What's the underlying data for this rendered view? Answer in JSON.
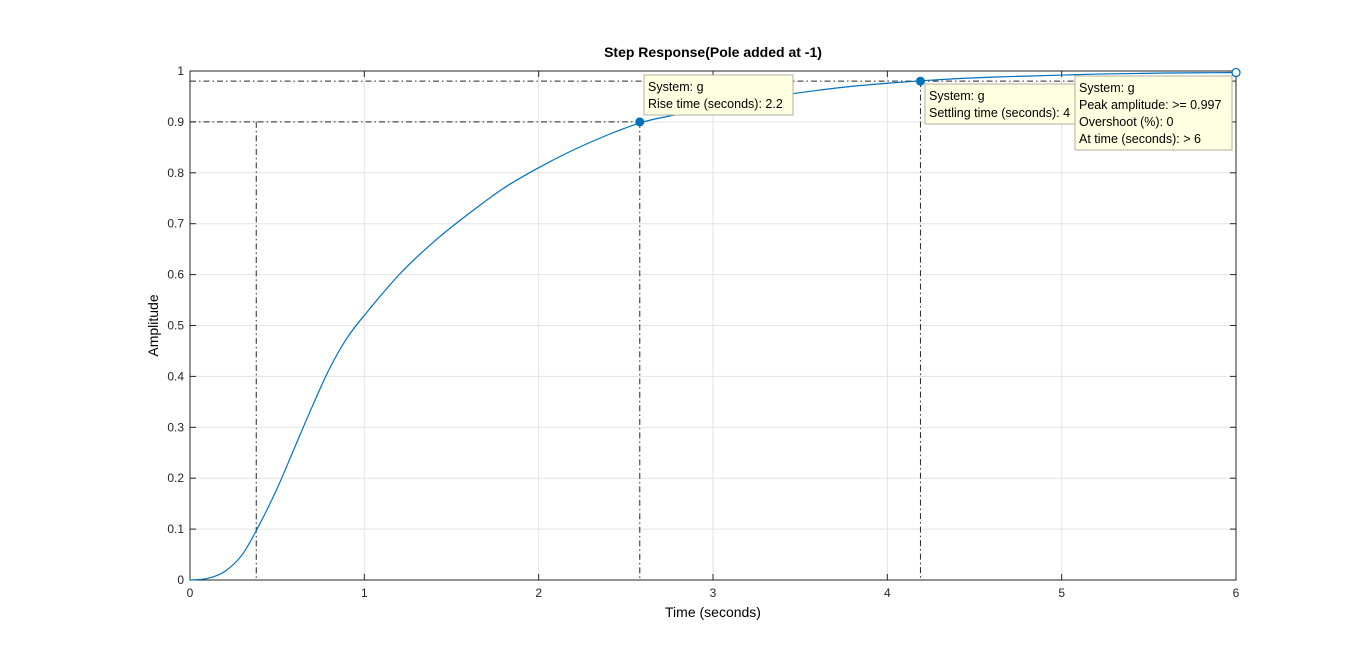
{
  "chart_data": {
    "type": "line",
    "title": "Step Response(Pole added at -1)",
    "xlabel": "Time (seconds)",
    "ylabel": "Amplitude",
    "xlim": [
      0,
      6
    ],
    "ylim": [
      0,
      1
    ],
    "grid": true,
    "x_ticks": [
      "0",
      "1",
      "2",
      "3",
      "4",
      "5",
      "6"
    ],
    "y_ticks": [
      "0",
      "0.1",
      "0.2",
      "0.3",
      "0.4",
      "0.5",
      "0.6",
      "0.7",
      "0.8",
      "0.9",
      "1"
    ],
    "series": [
      {
        "color": "#0072BD",
        "x": [
          0,
          0.1,
          0.2,
          0.3,
          0.4,
          0.5,
          0.6,
          0.7,
          0.8,
          0.9,
          1.0,
          1.2,
          1.4,
          1.6,
          1.8,
          2.0,
          2.2,
          2.4,
          2.6,
          2.8,
          3.0,
          3.2,
          3.4,
          3.6,
          3.8,
          4.0,
          4.2,
          4.4,
          4.6,
          4.8,
          5.0,
          5.2,
          5.4,
          5.6,
          5.8,
          6.0
        ],
        "y": [
          0,
          0.003,
          0.017,
          0.05,
          0.11,
          0.18,
          0.26,
          0.34,
          0.415,
          0.475,
          0.52,
          0.6,
          0.665,
          0.72,
          0.77,
          0.81,
          0.845,
          0.875,
          0.9,
          0.915,
          0.93,
          0.943,
          0.953,
          0.962,
          0.97,
          0.976,
          0.981,
          0.985,
          0.988,
          0.99,
          0.992,
          0.994,
          0.995,
          0.996,
          0.9965,
          0.997
        ]
      }
    ],
    "markers": [
      {
        "name": "rise-start",
        "x": 0.38,
        "y": 0.1
      },
      {
        "name": "rise-end",
        "x": 2.58,
        "y": 0.9
      },
      {
        "name": "settling",
        "x": 4.19,
        "y": 0.98
      },
      {
        "name": "peak",
        "x": 6.0,
        "y": 0.997
      }
    ],
    "reference_lines": {
      "rise_low_x": 0.38,
      "rise_high_x": 2.58,
      "settling_x": 4.19,
      "level_90": 0.9,
      "level_98": 0.98
    },
    "datatips": [
      {
        "name": "rise-time-tip",
        "lines": [
          "System: g",
          "Rise time (seconds): 2.2"
        ]
      },
      {
        "name": "settling-time-tip",
        "lines": [
          "System: g",
          "Settling time (seconds): 4"
        ]
      },
      {
        "name": "peak-tip",
        "lines": [
          "System: g",
          "Peak amplitude: >= 0.997",
          "Overshoot (%): 0",
          "At time (seconds): > 6"
        ]
      }
    ]
  }
}
